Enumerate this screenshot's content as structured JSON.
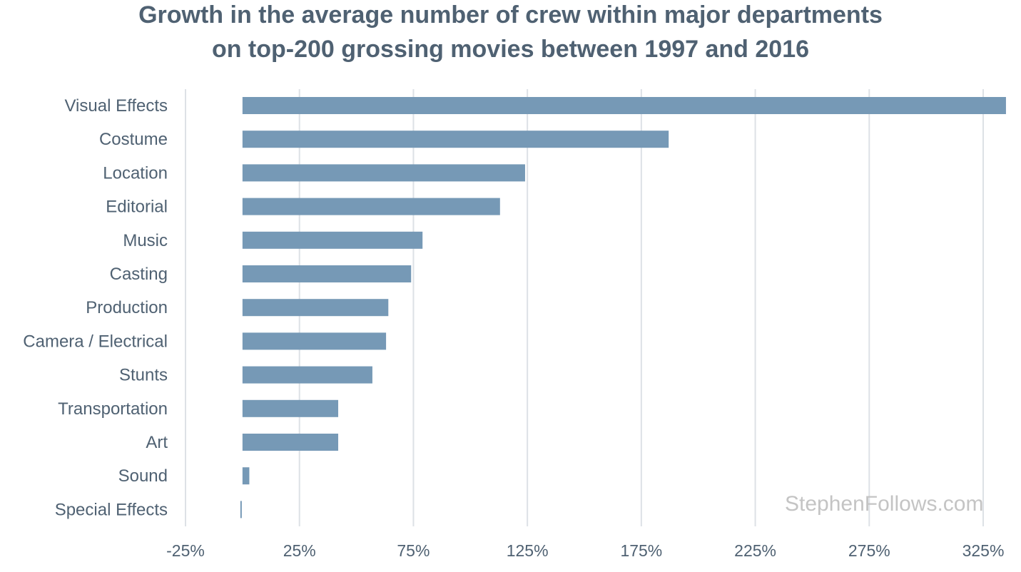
{
  "title_line1": "Growth in the average number of crew within major departments",
  "title_line2": "on top-200 grossing movies between 1997 and 2016",
  "watermark": "StephenFollows.com",
  "colors": {
    "bar": "#7699b6",
    "grid": "#dde1e6",
    "text": "#4f6172",
    "watermark": "#c4c4c4"
  },
  "chart_data": {
    "type": "bar",
    "orientation": "horizontal",
    "title": "Growth in the average number of crew within major departments on top-200 grossing movies between 1997 and 2016",
    "categories": [
      "Visual Effects",
      "Costume",
      "Location",
      "Editorial",
      "Music",
      "Casting",
      "Production",
      "Camera / Electrical",
      "Stunts",
      "Transportation",
      "Art",
      "Sound",
      "Special Effects"
    ],
    "values": [
      335,
      187,
      124,
      113,
      79,
      74,
      64,
      63,
      57,
      42,
      42,
      3,
      -0.5
    ],
    "value_unit": "%",
    "xlim": [
      -25,
      340
    ],
    "xticks": [
      "-25%",
      "25%",
      "75%",
      "125%",
      "175%",
      "225%",
      "275%",
      "325%"
    ],
    "xtick_values": [
      -25,
      25,
      75,
      125,
      175,
      225,
      275,
      325
    ],
    "grid": true,
    "legend": "none"
  }
}
